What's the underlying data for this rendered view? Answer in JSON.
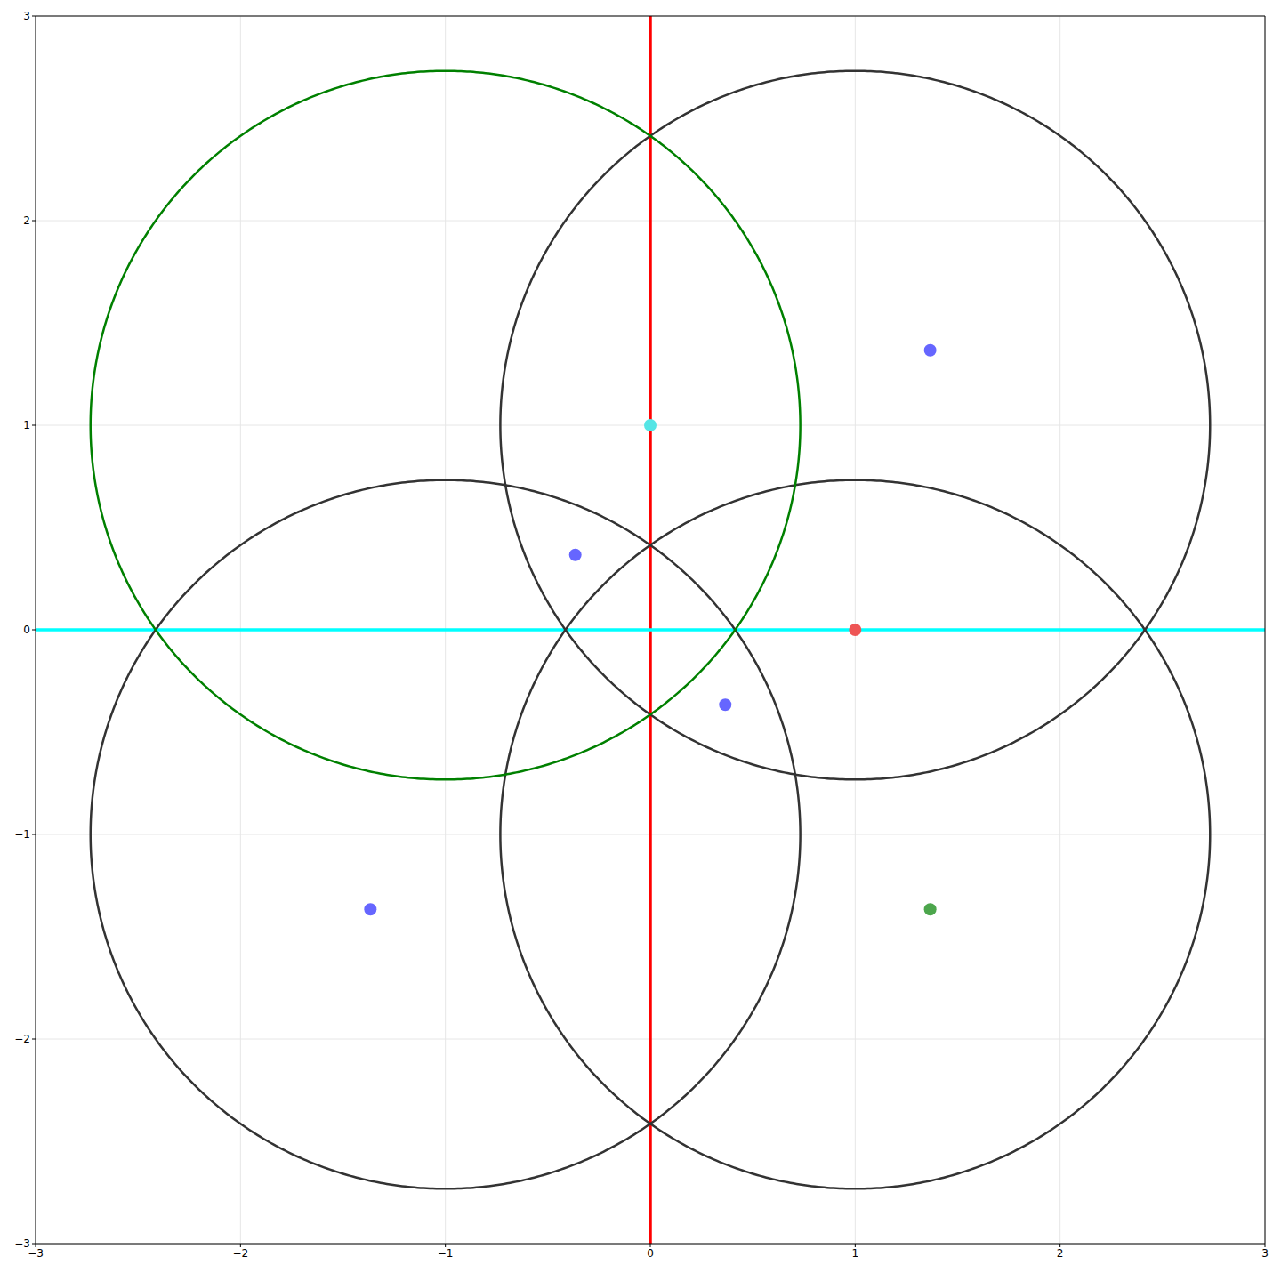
{
  "chart_data": {
    "type": "scatter",
    "xlim": [
      -3,
      3
    ],
    "ylim": [
      -3,
      3
    ],
    "xticks": [
      {
        "value": -3,
        "label": "−3"
      },
      {
        "value": -2,
        "label": "−2"
      },
      {
        "value": -1,
        "label": "−1"
      },
      0,
      1,
      2,
      3
    ],
    "yticks": [
      {
        "value": -3,
        "label": "−3"
      },
      {
        "value": -2,
        "label": "−2"
      },
      {
        "value": -1,
        "label": "−1"
      },
      0,
      1,
      2,
      3
    ],
    "grid": true,
    "circles": [
      {
        "center": [
          1,
          1
        ],
        "radius": 1.732,
        "color": "#333333"
      },
      {
        "center": [
          -1,
          -1
        ],
        "radius": 1.732,
        "color": "#333333"
      },
      {
        "center": [
          1,
          -1
        ],
        "radius": 1.732,
        "color": "#333333"
      },
      {
        "center": [
          -1,
          1
        ],
        "radius": 1.732,
        "color": "#008000"
      }
    ],
    "lines": [
      {
        "x": 0,
        "color": "#ff0000"
      },
      {
        "y": 0,
        "color": "#00ffff"
      }
    ],
    "points": [
      {
        "x": 1.366,
        "y": 1.366,
        "color": "#6666ff"
      },
      {
        "x": -0.366,
        "y": 0.366,
        "color": "#6666ff"
      },
      {
        "x": 0.366,
        "y": -0.366,
        "color": "#6666ff"
      },
      {
        "x": -1.366,
        "y": -1.366,
        "color": "#6666ff"
      },
      {
        "x": 1.366,
        "y": -1.366,
        "color": "#4ca64c"
      },
      {
        "x": 1,
        "y": 0,
        "color": "#ee5555"
      },
      {
        "x": 0,
        "y": 1,
        "color": "#55e5e5"
      }
    ]
  }
}
